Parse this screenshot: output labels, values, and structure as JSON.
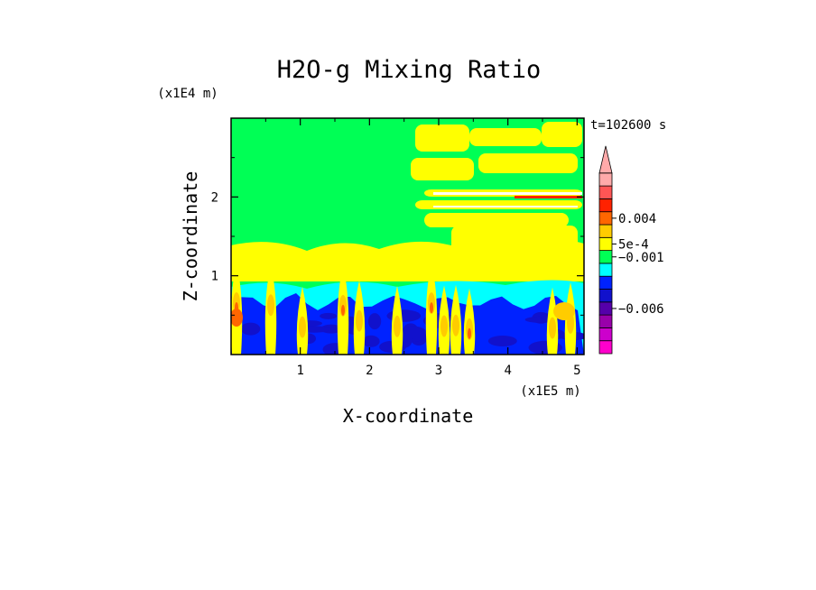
{
  "chart_data": {
    "type": "heatmap",
    "title": "H2O-g Mixing Ratio",
    "xlabel": "X-coordinate",
    "ylabel": "Z-coordinate",
    "x_scale_label": "(x1E5 m)",
    "y_scale_label": "(x1E4 m)",
    "time_label": "t=102600 s",
    "xlim": [
      0.0,
      5.1
    ],
    "ylim": [
      0.0,
      3.0
    ],
    "x_ticks": [
      1,
      2,
      3,
      4,
      5
    ],
    "x_tick_labels": [
      "1",
      "2",
      "3",
      "4",
      "5"
    ],
    "y_ticks": [
      1,
      2
    ],
    "y_tick_labels": [
      "1",
      "2"
    ],
    "colorbar": {
      "colors": [
        "#ff00cc",
        "#cc00cc",
        "#9900aa",
        "#5500aa",
        "#1111cc",
        "#0022ff",
        "#00ffff",
        "#00ff55",
        "#ffff00",
        "#ffcc00",
        "#ff6600",
        "#ff2200",
        "#ff5555",
        "#ffaaaa"
      ],
      "extend_top": true,
      "labels": [
        {
          "text": "0.004",
          "index": 10.5
        },
        {
          "text": "5e-4",
          "index": 8.5
        },
        {
          "text": "−0.001",
          "index": 7.5
        },
        {
          "text": "−0.006",
          "index": 3.5
        }
      ]
    },
    "colors": {
      "background_field": "#00ff55",
      "cloud": "#ffff00",
      "moist": "#00ffff",
      "dry": "#0022ff",
      "very_dry": "#1111cc",
      "warm": "#ffcc00",
      "hot": "#ff6600",
      "red": "#ff2200",
      "pink": "#ff5555",
      "light_pink": "#ffaaaa"
    }
  }
}
